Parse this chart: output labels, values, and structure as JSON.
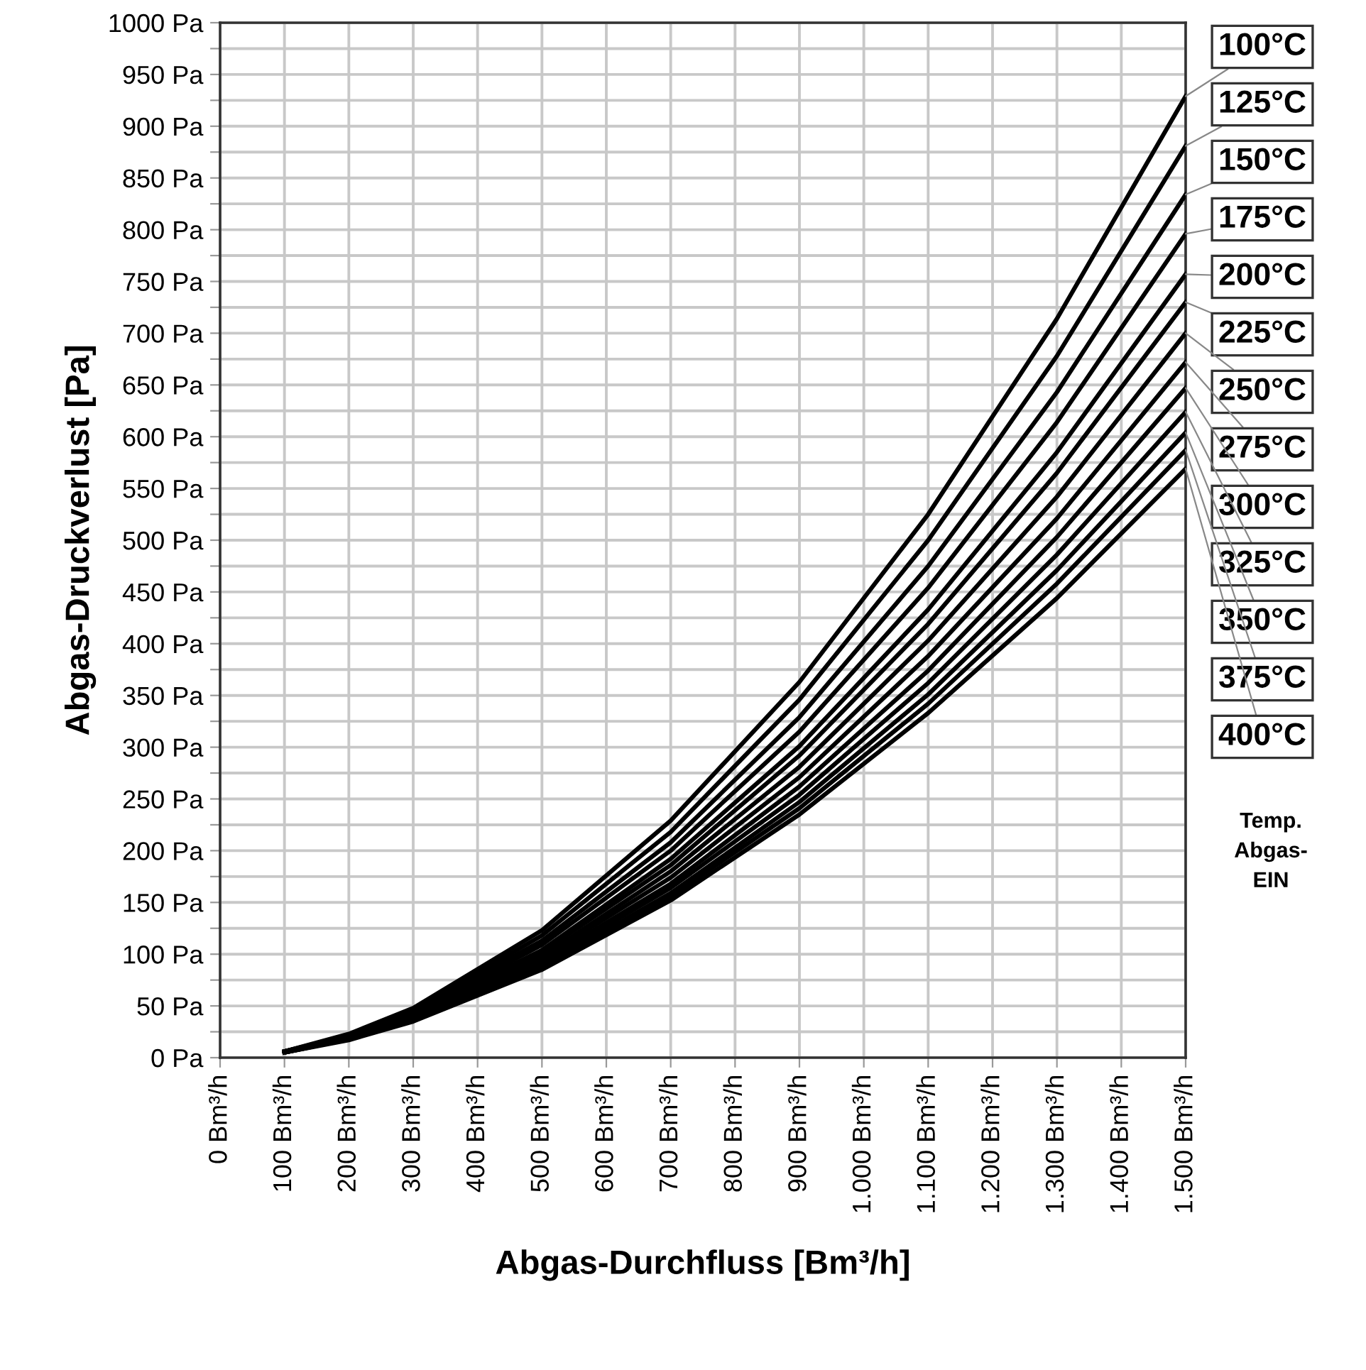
{
  "chart_data": {
    "type": "line",
    "xlabel": "Abgas-Durchfluss [Bm³/h]",
    "ylabel": "Abgas-Druckverlust [Pa]",
    "legend_title": "Temp.\nAbgas-\nEIN",
    "x": [
      100,
      200,
      300,
      500,
      700,
      900,
      1100,
      1300,
      1500
    ],
    "xlim": [
      0,
      1500
    ],
    "ylim": [
      0,
      1000
    ],
    "xticks": [
      {
        "value": 0,
        "label": "0 Bm³/h"
      },
      {
        "value": 100,
        "label": "100 Bm³/h"
      },
      {
        "value": 200,
        "label": "200 Bm³/h"
      },
      {
        "value": 300,
        "label": "300 Bm³/h"
      },
      {
        "value": 400,
        "label": "400 Bm³/h"
      },
      {
        "value": 500,
        "label": "500 Bm³/h"
      },
      {
        "value": 600,
        "label": "600 Bm³/h"
      },
      {
        "value": 700,
        "label": "700 Bm³/h"
      },
      {
        "value": 800,
        "label": "800 Bm³/h"
      },
      {
        "value": 900,
        "label": "900 Bm³/h"
      },
      {
        "value": 1000,
        "label": "1.000 Bm³/h"
      },
      {
        "value": 1100,
        "label": "1.100 Bm³/h"
      },
      {
        "value": 1200,
        "label": "1.200 Bm³/h"
      },
      {
        "value": 1300,
        "label": "1.300 Bm³/h"
      },
      {
        "value": 1400,
        "label": "1.400 Bm³/h"
      },
      {
        "value": 1500,
        "label": "1.500 Bm³/h"
      }
    ],
    "yticks": [
      {
        "value": 0,
        "label": "0 Pa"
      },
      {
        "value": 25,
        "label": null
      },
      {
        "value": 50,
        "label": "50 Pa"
      },
      {
        "value": 75,
        "label": null
      },
      {
        "value": 100,
        "label": "100 Pa"
      },
      {
        "value": 125,
        "label": null
      },
      {
        "value": 150,
        "label": "150 Pa"
      },
      {
        "value": 175,
        "label": null
      },
      {
        "value": 200,
        "label": "200 Pa"
      },
      {
        "value": 225,
        "label": null
      },
      {
        "value": 250,
        "label": "250 Pa"
      },
      {
        "value": 275,
        "label": null
      },
      {
        "value": 300,
        "label": "300 Pa"
      },
      {
        "value": 325,
        "label": null
      },
      {
        "value": 350,
        "label": "350 Pa"
      },
      {
        "value": 375,
        "label": null
      },
      {
        "value": 400,
        "label": "400 Pa"
      },
      {
        "value": 425,
        "label": null
      },
      {
        "value": 450,
        "label": "450 Pa"
      },
      {
        "value": 475,
        "label": null
      },
      {
        "value": 500,
        "label": "500 Pa"
      },
      {
        "value": 525,
        "label": null
      },
      {
        "value": 550,
        "label": "550 Pa"
      },
      {
        "value": 575,
        "label": null
      },
      {
        "value": 600,
        "label": "600 Pa"
      },
      {
        "value": 625,
        "label": null
      },
      {
        "value": 650,
        "label": "650 Pa"
      },
      {
        "value": 675,
        "label": null
      },
      {
        "value": 700,
        "label": "700 Pa"
      },
      {
        "value": 725,
        "label": null
      },
      {
        "value": 750,
        "label": "750 Pa"
      },
      {
        "value": 775,
        "label": null
      },
      {
        "value": 800,
        "label": "800 Pa"
      },
      {
        "value": 825,
        "label": null
      },
      {
        "value": 850,
        "label": "850 Pa"
      },
      {
        "value": 875,
        "label": null
      },
      {
        "value": 900,
        "label": "900 Pa"
      },
      {
        "value": 925,
        "label": null
      },
      {
        "value": 950,
        "label": "950 Pa"
      },
      {
        "value": 975,
        "label": null
      },
      {
        "value": 1000,
        "label": "1000 Pa"
      }
    ],
    "grid": true,
    "marker": "none",
    "line_style": "solid",
    "series": [
      {
        "name": "100°C",
        "color": "#000000",
        "values": [
          6,
          23,
          48,
          123,
          229,
          363,
          525,
          714,
          929
        ]
      },
      {
        "name": "125°C",
        "color": "#000000",
        "values": [
          6,
          22,
          46,
          118,
          218,
          346,
          500,
          678,
          881
        ]
      },
      {
        "name": "150°C",
        "color": "#000000",
        "values": [
          6,
          21,
          45,
          113,
          208,
          329,
          475,
          643,
          834
        ]
      },
      {
        "name": "175°C",
        "color": "#000000",
        "values": [
          6,
          21,
          43,
          109,
          200,
          315,
          454,
          614,
          796
        ]
      },
      {
        "name": "200°C",
        "color": "#000000",
        "values": [
          6,
          20,
          42,
          104,
          192,
          301,
          433,
          585,
          757
        ]
      },
      {
        "name": "225°C",
        "color": "#000000",
        "values": [
          6,
          20,
          41,
          102,
          186,
          292,
          419,
          565,
          730
        ]
      },
      {
        "name": "250°C",
        "color": "#000000",
        "values": [
          6,
          19,
          40,
          98,
          180,
          281,
          403,
          542,
          700
        ]
      },
      {
        "name": "275°C",
        "color": "#000000",
        "values": [
          5,
          19,
          39,
          96,
          174,
          271,
          388,
          521,
          672
        ]
      },
      {
        "name": "300°C",
        "color": "#000000",
        "values": [
          5,
          18,
          38,
          93,
          168,
          262,
          374,
          503,
          647
        ]
      },
      {
        "name": "325°C",
        "color": "#000000",
        "values": [
          5,
          18,
          37,
          91,
          164,
          254,
          362,
          486,
          624
        ]
      },
      {
        "name": "350°C",
        "color": "#000000",
        "values": [
          5,
          18,
          36,
          88,
          159,
          247,
          351,
          471,
          604
        ]
      },
      {
        "name": "375°C",
        "color": "#000000",
        "values": [
          5,
          18,
          36,
          87,
          156,
          241,
          342,
          458,
          587
        ]
      },
      {
        "name": "400°C",
        "color": "#000000",
        "values": [
          5,
          17,
          35,
          85,
          152,
          235,
          333,
          444,
          569
        ]
      }
    ]
  }
}
